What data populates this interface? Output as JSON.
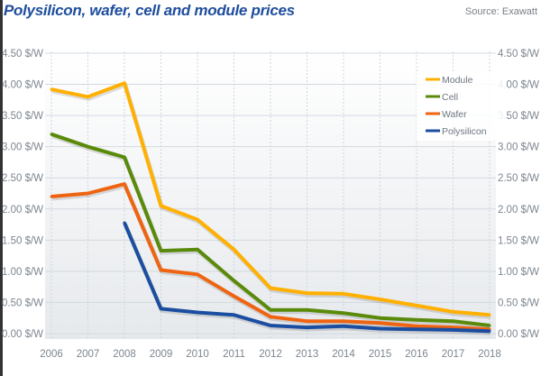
{
  "title": "Polysilicon, wafer, cell and module prices",
  "source": "Source: Exawatt",
  "chart_data": {
    "type": "line",
    "title": "Polysilicon, wafer, cell and module prices",
    "x": [
      "2006",
      "2007",
      "2008",
      "2009",
      "2010",
      "2011",
      "2012",
      "2013",
      "2014",
      "2015",
      "2016",
      "2017",
      "2018"
    ],
    "yticks": [
      "0.00 $/W",
      "0.50 $/W",
      "1.00 $/W",
      "1.50 $/W",
      "2.00 $/W",
      "2.50 $/W",
      "3.00 $/W",
      "3.50 $/W",
      "4.00 $/W",
      "4.50 $/W"
    ],
    "ylim": [
      0,
      4.5
    ],
    "yunit": "$/W",
    "grid": true,
    "legend_position": "top-right",
    "dual_y_axis": true,
    "series": [
      {
        "name": "Module",
        "color": "#ffb000",
        "values": [
          3.92,
          3.8,
          4.02,
          2.05,
          1.83,
          1.35,
          0.73,
          0.65,
          0.64,
          0.55,
          0.45,
          0.35,
          0.3
        ]
      },
      {
        "name": "Cell",
        "color": "#5a8a0a",
        "values": [
          3.2,
          3.0,
          2.83,
          1.33,
          1.35,
          0.85,
          0.38,
          0.38,
          0.33,
          0.25,
          0.22,
          0.2,
          0.13
        ]
      },
      {
        "name": "Wafer",
        "color": "#ef6410",
        "values": [
          2.2,
          2.25,
          2.4,
          1.02,
          0.95,
          0.6,
          0.27,
          0.2,
          0.2,
          0.17,
          0.12,
          0.1,
          0.07
        ]
      },
      {
        "name": "Polysilicon",
        "color": "#1b4ea0",
        "values": [
          null,
          null,
          1.78,
          0.4,
          0.34,
          0.3,
          0.13,
          0.1,
          0.12,
          0.08,
          0.07,
          0.06,
          0.04
        ]
      }
    ]
  }
}
